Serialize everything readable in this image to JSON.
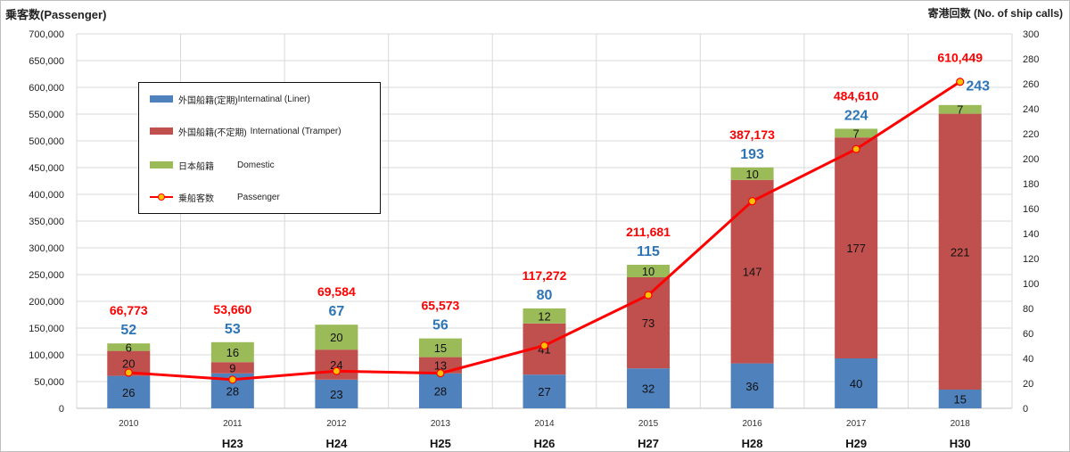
{
  "chart_data": {
    "type": "bar",
    "ylabel": "乗客数(Passenger)",
    "y2label": "寄港回数 (No. of ship calls)",
    "ylim": [
      0,
      700000
    ],
    "y2lim": [
      0,
      300
    ],
    "yticks": [
      "0",
      "50,000",
      "100,000",
      "150,000",
      "200,000",
      "250,000",
      "300,000",
      "350,000",
      "400,000",
      "450,000",
      "500,000",
      "550,000",
      "600,000",
      "650,000",
      "700,000"
    ],
    "y2ticks": [
      "0",
      "20",
      "40",
      "60",
      "80",
      "100",
      "120",
      "140",
      "160",
      "180",
      "200",
      "220",
      "240",
      "260",
      "280",
      "300"
    ],
    "categories": [
      "2010",
      "2011",
      "2012",
      "2013",
      "2014",
      "2015",
      "2016",
      "2017",
      "2018"
    ],
    "era_labels": [
      "",
      "H23",
      "H24",
      "H25",
      "H26",
      "H27",
      "H28",
      "H29",
      "H30"
    ],
    "series": [
      {
        "name": "外国船籍(定期)Internatinal (Liner)",
        "color": "#4f81bd",
        "values": [
          26,
          28,
          23,
          28,
          27,
          32,
          36,
          40,
          15
        ]
      },
      {
        "name": "外国船籍(不定期) International (Tramper)",
        "color": "#c0504d",
        "values": [
          20,
          9,
          24,
          13,
          41,
          73,
          147,
          177,
          221
        ]
      },
      {
        "name": "日本船籍 Domestic",
        "color": "#9bbb59",
        "values": [
          6,
          16,
          20,
          15,
          12,
          10,
          10,
          7,
          7
        ]
      }
    ],
    "call_totals": [
      52,
      53,
      67,
      56,
      80,
      115,
      193,
      224,
      243
    ],
    "passengers": {
      "name": "乗船客数 Passenger",
      "color": "#ff0000",
      "values": [
        66773,
        53660,
        69584,
        65573,
        117272,
        211681,
        387173,
        484610,
        610449
      ],
      "labels": [
        "66,773",
        "53,660",
        "69,584",
        "65,573",
        "117,272",
        "211,681",
        "387,173",
        "484,610",
        "610,449"
      ]
    },
    "legend": {
      "liner_jp": "外国船籍(定期)",
      "liner_en": "Internatinal (Liner)",
      "tramper_jp": "外国船籍(不定期)",
      "tramper_en": "International (Tramper)",
      "domestic_jp": "日本船籍",
      "domestic_en": "Domestic",
      "passenger_jp": "乗船客数",
      "passenger_en": "Passenger"
    },
    "grid": true,
    "legend_position": "top-left"
  }
}
